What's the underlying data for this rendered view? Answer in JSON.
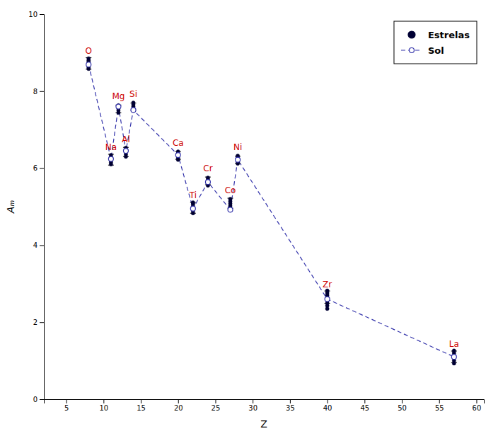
{
  "chart_data": {
    "type": "scatter",
    "xlabel": "Z",
    "ylabel": "Aₘ",
    "xlim": [
      2,
      61
    ],
    "ylim": [
      0,
      10
    ],
    "xticks": [
      5,
      10,
      15,
      20,
      25,
      30,
      35,
      40,
      45,
      50,
      55,
      60
    ],
    "yticks": [
      0,
      2,
      4,
      6,
      8,
      10
    ],
    "grid": false,
    "legend": "upper right",
    "series": [
      {
        "name": "Estrelas",
        "type": "scatter",
        "color": "#000033",
        "marker": "circle",
        "x": [
          8,
          8,
          8,
          8,
          8,
          8,
          8,
          11,
          11,
          11,
          11,
          11,
          11,
          12,
          12,
          12,
          12,
          12,
          13,
          13,
          13,
          13,
          13,
          14,
          14,
          14,
          14,
          14,
          20,
          20,
          20,
          20,
          20,
          22,
          22,
          22,
          22,
          22,
          22,
          24,
          24,
          24,
          24,
          24,
          27,
          27,
          27,
          27,
          27,
          28,
          28,
          28,
          28,
          28,
          40,
          40,
          40,
          40,
          40,
          40,
          40,
          40,
          57,
          57,
          57,
          57,
          57,
          57
        ],
        "values": [
          8.58,
          8.62,
          8.67,
          8.72,
          8.76,
          8.8,
          8.85,
          6.1,
          6.15,
          6.2,
          6.24,
          6.29,
          6.34,
          7.44,
          7.5,
          7.55,
          7.59,
          7.63,
          6.3,
          6.36,
          6.42,
          6.47,
          6.53,
          7.5,
          7.55,
          7.6,
          7.65,
          7.7,
          6.22,
          6.27,
          6.33,
          6.38,
          6.43,
          4.83,
          4.89,
          4.95,
          5.01,
          5.07,
          5.11,
          5.55,
          5.6,
          5.65,
          5.7,
          5.75,
          4.95,
          5.02,
          5.08,
          5.14,
          5.2,
          6.12,
          6.17,
          6.22,
          6.27,
          6.32,
          2.35,
          2.43,
          2.5,
          2.57,
          2.64,
          2.7,
          2.76,
          2.82,
          0.93,
          1.0,
          1.07,
          1.13,
          1.2,
          1.26
        ]
      },
      {
        "name": "Sol",
        "type": "line",
        "color": "#3333AA",
        "line_style": "dashed",
        "marker": "circle-open",
        "x": [
          8,
          11,
          12,
          13,
          14,
          20,
          22,
          24,
          27,
          28,
          40,
          57
        ],
        "values": [
          8.69,
          6.24,
          7.6,
          6.45,
          7.51,
          6.34,
          4.95,
          5.64,
          4.92,
          6.22,
          2.6,
          1.1
        ]
      }
    ],
    "error_bars": {
      "color": "#000000",
      "x": [
        8,
        11,
        12,
        13,
        14,
        20,
        22,
        24,
        27,
        28,
        40,
        57
      ],
      "values": [
        8.72,
        6.22,
        7.54,
        6.42,
        7.6,
        6.33,
        4.97,
        5.67,
        5.09,
        6.22,
        2.65,
        1.1
      ],
      "errors": [
        0.15,
        0.14,
        0.1,
        0.12,
        0.09,
        0.1,
        0.14,
        0.1,
        0.13,
        0.09,
        0.16,
        0.15
      ]
    },
    "annotations": [
      {
        "text": "O",
        "x": 8,
        "y": 8.72,
        "color": "#CC0000"
      },
      {
        "text": "Na",
        "x": 11,
        "y": 6.22,
        "color": "#CC0000"
      },
      {
        "text": "Mg",
        "x": 12,
        "y": 7.54,
        "color": "#CC0000"
      },
      {
        "text": "Al",
        "x": 13,
        "y": 6.42,
        "color": "#CC0000"
      },
      {
        "text": "Si",
        "x": 14,
        "y": 7.6,
        "color": "#CC0000"
      },
      {
        "text": "Ca",
        "x": 20,
        "y": 6.33,
        "color": "#CC0000"
      },
      {
        "text": "Ti",
        "x": 22,
        "y": 4.97,
        "color": "#CC0000"
      },
      {
        "text": "Cr",
        "x": 24,
        "y": 5.67,
        "color": "#CC0000"
      },
      {
        "text": "Co",
        "x": 27,
        "y": 5.09,
        "color": "#CC0000"
      },
      {
        "text": "Ni",
        "x": 28,
        "y": 6.22,
        "color": "#CC0000"
      },
      {
        "text": "Zr",
        "x": 40,
        "y": 2.65,
        "color": "#CC0000"
      },
      {
        "text": "La",
        "x": 57,
        "y": 1.1,
        "color": "#CC0000"
      }
    ]
  }
}
